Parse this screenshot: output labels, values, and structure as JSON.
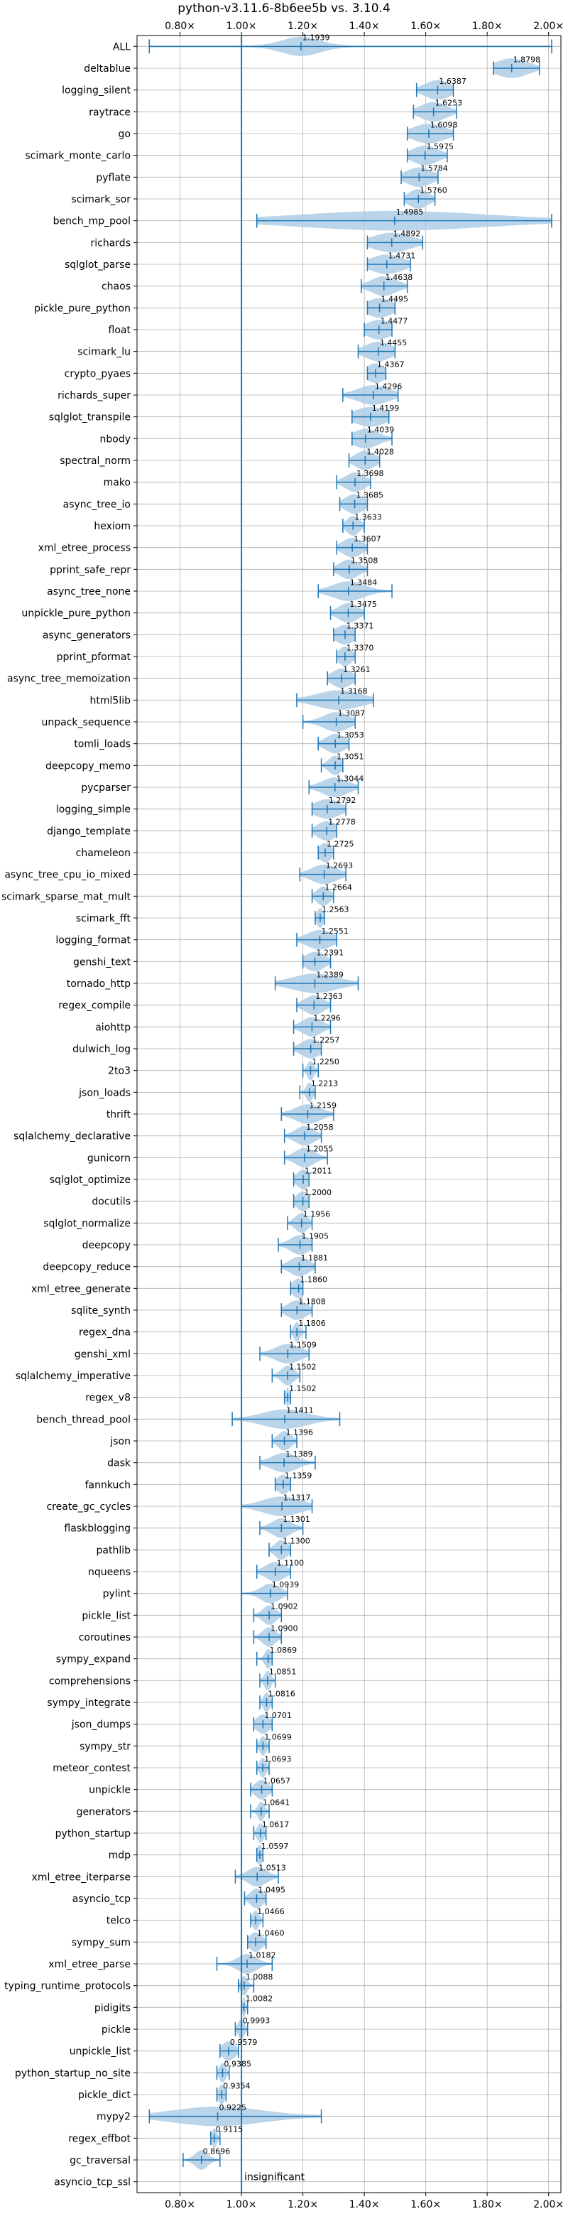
{
  "chart_data": {
    "type": "violin",
    "title": "python-v3.11.6-8b6ee5b vs. 3.10.4",
    "xlabel": "",
    "ylabel": "",
    "xlim": [
      0.66,
      2.04
    ],
    "x_ticks": [
      0.8,
      1.0,
      1.2,
      1.4,
      1.6,
      1.8,
      2.0
    ],
    "x_tick_labels": [
      "0.80×",
      "1.00×",
      "1.20×",
      "1.40×",
      "1.60×",
      "1.80×",
      "2.00×"
    ],
    "grid": true,
    "reference_line": 1.0,
    "annotation": "insignificant",
    "accent_color": "#1f77b4",
    "violin_color": "#aecde6",
    "categories": [
      "ALL",
      "deltablue",
      "logging_silent",
      "raytrace",
      "go",
      "scimark_monte_carlo",
      "pyflate",
      "scimark_sor",
      "bench_mp_pool",
      "richards",
      "sqlglot_parse",
      "chaos",
      "pickle_pure_python",
      "float",
      "scimark_lu",
      "crypto_pyaes",
      "richards_super",
      "sqlglot_transpile",
      "nbody",
      "spectral_norm",
      "mako",
      "async_tree_io",
      "hexiom",
      "xml_etree_process",
      "pprint_safe_repr",
      "async_tree_none",
      "unpickle_pure_python",
      "async_generators",
      "pprint_pformat",
      "async_tree_memoization",
      "html5lib",
      "unpack_sequence",
      "tomli_loads",
      "deepcopy_memo",
      "pycparser",
      "logging_simple",
      "django_template",
      "chameleon",
      "async_tree_cpu_io_mixed",
      "scimark_sparse_mat_mult",
      "scimark_fft",
      "logging_format",
      "genshi_text",
      "tornado_http",
      "regex_compile",
      "aiohttp",
      "dulwich_log",
      "2to3",
      "json_loads",
      "thrift",
      "sqlalchemy_declarative",
      "gunicorn",
      "sqlglot_optimize",
      "docutils",
      "sqlglot_normalize",
      "deepcopy",
      "deepcopy_reduce",
      "xml_etree_generate",
      "sqlite_synth",
      "regex_dna",
      "genshi_xml",
      "sqlalchemy_imperative",
      "regex_v8",
      "bench_thread_pool",
      "json",
      "dask",
      "fannkuch",
      "create_gc_cycles",
      "flaskblogging",
      "pathlib",
      "nqueens",
      "pylint",
      "pickle_list",
      "coroutines",
      "sympy_expand",
      "comprehensions",
      "sympy_integrate",
      "json_dumps",
      "sympy_str",
      "meteor_contest",
      "unpickle",
      "generators",
      "python_startup",
      "mdp",
      "xml_etree_iterparse",
      "asyncio_tcp",
      "telco",
      "sympy_sum",
      "xml_etree_parse",
      "typing_runtime_protocols",
      "pidigits",
      "pickle",
      "unpickle_list",
      "python_startup_no_site",
      "pickle_dict",
      "mypy2",
      "regex_effbot",
      "gc_traversal",
      "asyncio_tcp_ssl"
    ],
    "values": [
      1.1939,
      1.8798,
      1.6387,
      1.6253,
      1.6098,
      1.5975,
      1.5784,
      1.576,
      1.4985,
      1.4892,
      1.4731,
      1.4638,
      1.4495,
      1.4477,
      1.4455,
      1.4367,
      1.4296,
      1.4199,
      1.4039,
      1.4028,
      1.3698,
      1.3685,
      1.3633,
      1.3607,
      1.3508,
      1.3484,
      1.3475,
      1.3371,
      1.337,
      1.3261,
      1.3168,
      1.3087,
      1.3053,
      1.3051,
      1.3044,
      1.2792,
      1.2778,
      1.2725,
      1.2693,
      1.2664,
      1.2563,
      1.2551,
      1.2391,
      1.2389,
      1.2363,
      1.2296,
      1.2257,
      1.225,
      1.2213,
      1.2159,
      1.2058,
      1.2055,
      1.2011,
      1.2,
      1.1956,
      1.1905,
      1.1881,
      1.186,
      1.1808,
      1.1806,
      1.1509,
      1.1502,
      1.1502,
      1.1411,
      1.1396,
      1.1389,
      1.1359,
      1.1317,
      1.1301,
      1.13,
      1.11,
      1.0939,
      1.0902,
      1.09,
      1.0869,
      1.0851,
      1.0816,
      1.0701,
      1.0699,
      1.0693,
      1.0657,
      1.0641,
      1.0617,
      1.0597,
      1.0513,
      1.0495,
      1.0466,
      1.046,
      1.0182,
      1.0088,
      1.0082,
      0.9993,
      0.9579,
      0.9385,
      0.9354,
      0.9225,
      0.9115,
      0.8696,
      null
    ],
    "value_labels": [
      "1.1939",
      "1.8798",
      "1.6387",
      "1.6253",
      "1.6098",
      "1.5975",
      "1.5784",
      "1.5760",
      "1.4985",
      "1.4892",
      "1.4731",
      "1.4638",
      "1.4495",
      "1.4477",
      "1.4455",
      "1.4367",
      "1.4296",
      "1.4199",
      "1.4039",
      "1.4028",
      "1.3698",
      "1.3685",
      "1.3633",
      "1.3607",
      "1.3508",
      "1.3484",
      "1.3475",
      "1.3371",
      "1.3370",
      "1.3261",
      "1.3168",
      "1.3087",
      "1.3053",
      "1.3051",
      "1.3044",
      "1.2792",
      "1.2778",
      "1.2725",
      "1.2693",
      "1.2664",
      "1.2563",
      "1.2551",
      "1.2391",
      "1.2389",
      "1.2363",
      "1.2296",
      "1.2257",
      "1.2250",
      "1.2213",
      "1.2159",
      "1.2058",
      "1.2055",
      "1.2011",
      "1.2000",
      "1.1956",
      "1.1905",
      "1.1881",
      "1.1860",
      "1.1808",
      "1.1806",
      "1.1509",
      "1.1502",
      "1.1502",
      "1.1411",
      "1.1396",
      "1.1389",
      "1.1359",
      "1.1317",
      "1.1301",
      "1.1300",
      "1.1100",
      "1.0939",
      "1.0902",
      "1.0900",
      "1.0869",
      "1.0851",
      "1.0816",
      "1.0701",
      "1.0699",
      "1.0693",
      "1.0657",
      "1.0641",
      "1.0617",
      "1.0597",
      "1.0513",
      "1.0495",
      "1.0466",
      "1.0460",
      "1.0182",
      "1.0088",
      "1.0082",
      "0.9993",
      "0.9579",
      "0.9385",
      "0.9354",
      "0.9225",
      "0.9115",
      "0.8696",
      ""
    ],
    "mins": [
      0.7,
      1.82,
      1.57,
      1.56,
      1.54,
      1.54,
      1.52,
      1.53,
      1.05,
      1.41,
      1.41,
      1.39,
      1.41,
      1.4,
      1.38,
      1.41,
      1.33,
      1.36,
      1.36,
      1.35,
      1.31,
      1.32,
      1.33,
      1.31,
      1.3,
      1.25,
      1.29,
      1.3,
      1.31,
      1.28,
      1.18,
      1.2,
      1.25,
      1.26,
      1.22,
      1.23,
      1.23,
      1.25,
      1.19,
      1.23,
      1.24,
      1.18,
      1.2,
      1.11,
      1.18,
      1.17,
      1.17,
      1.2,
      1.19,
      1.13,
      1.14,
      1.14,
      1.17,
      1.17,
      1.15,
      1.12,
      1.13,
      1.16,
      1.13,
      1.16,
      1.06,
      1.1,
      1.14,
      0.97,
      1.1,
      1.06,
      1.11,
      1.0,
      1.06,
      1.09,
      1.05,
      1.0,
      1.04,
      1.04,
      1.05,
      1.06,
      1.06,
      1.04,
      1.05,
      1.05,
      1.03,
      1.03,
      1.04,
      1.05,
      0.98,
      1.01,
      1.03,
      1.02,
      0.92,
      0.99,
      1.0,
      0.98,
      0.93,
      0.92,
      0.92,
      0.7,
      0.9,
      0.81,
      null
    ],
    "maxs": [
      2.01,
      1.97,
      1.69,
      1.7,
      1.69,
      1.67,
      1.64,
      1.63,
      2.01,
      1.59,
      1.55,
      1.54,
      1.5,
      1.49,
      1.5,
      1.47,
      1.51,
      1.48,
      1.49,
      1.45,
      1.42,
      1.41,
      1.4,
      1.41,
      1.41,
      1.49,
      1.4,
      1.37,
      1.37,
      1.37,
      1.43,
      1.37,
      1.35,
      1.33,
      1.38,
      1.34,
      1.31,
      1.3,
      1.34,
      1.3,
      1.27,
      1.31,
      1.29,
      1.38,
      1.29,
      1.29,
      1.26,
      1.25,
      1.24,
      1.3,
      1.26,
      1.28,
      1.22,
      1.22,
      1.23,
      1.23,
      1.24,
      1.2,
      1.23,
      1.21,
      1.22,
      1.19,
      1.16,
      1.32,
      1.18,
      1.24,
      1.16,
      1.23,
      1.2,
      1.16,
      1.16,
      1.15,
      1.13,
      1.13,
      1.1,
      1.11,
      1.1,
      1.1,
      1.09,
      1.09,
      1.1,
      1.09,
      1.08,
      1.07,
      1.12,
      1.08,
      1.07,
      1.08,
      1.1,
      1.04,
      1.02,
      1.02,
      0.99,
      0.96,
      0.95,
      1.26,
      0.93,
      0.93,
      null
    ],
    "spreads": [
      0.06,
      0.05,
      0.04,
      0.04,
      0.05,
      0.04,
      0.04,
      0.03,
      0.3,
      0.06,
      0.05,
      0.04,
      0.04,
      0.04,
      0.04,
      0.03,
      0.05,
      0.05,
      0.04,
      0.03,
      0.03,
      0.03,
      0.02,
      0.03,
      0.03,
      0.05,
      0.03,
      0.03,
      0.02,
      0.03,
      0.07,
      0.04,
      0.03,
      0.02,
      0.04,
      0.04,
      0.03,
      0.02,
      0.04,
      0.02,
      0.01,
      0.04,
      0.03,
      0.07,
      0.03,
      0.03,
      0.03,
      0.01,
      0.01,
      0.04,
      0.03,
      0.03,
      0.02,
      0.02,
      0.02,
      0.03,
      0.03,
      0.02,
      0.03,
      0.01,
      0.04,
      0.02,
      0.005,
      0.07,
      0.02,
      0.04,
      0.02,
      0.06,
      0.03,
      0.02,
      0.03,
      0.03,
      0.02,
      0.02,
      0.01,
      0.01,
      0.01,
      0.02,
      0.01,
      0.01,
      0.02,
      0.01,
      0.01,
      0.01,
      0.03,
      0.02,
      0.01,
      0.02,
      0.03,
      0.01,
      0.005,
      0.01,
      0.02,
      0.01,
      0.01,
      0.14,
      0.008,
      0.02,
      null
    ]
  }
}
